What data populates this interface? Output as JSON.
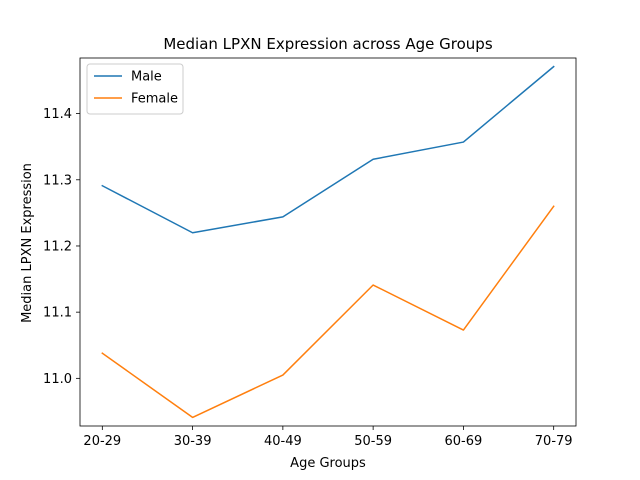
{
  "chart_data": {
    "type": "line",
    "title": "Median LPXN Expression across Age Groups",
    "xlabel": "Age Groups",
    "ylabel": "Median LPXN Expression",
    "categories": [
      "20-29",
      "30-39",
      "40-49",
      "50-59",
      "60-69",
      "70-79"
    ],
    "series": [
      {
        "name": "Male",
        "color": "#1f77b4",
        "values": [
          11.291,
          11.22,
          11.244,
          11.331,
          11.357,
          11.471
        ]
      },
      {
        "name": "Female",
        "color": "#ff7f0e",
        "values": [
          11.038,
          10.941,
          11.005,
          11.141,
          11.073,
          11.26
        ]
      }
    ],
    "ylim": [
      10.928,
      11.484
    ],
    "yticks": [
      "11.0",
      "11.1",
      "11.2",
      "11.3",
      "11.4"
    ],
    "ytick_values": [
      11.0,
      11.1,
      11.2,
      11.3,
      11.4
    ],
    "grid": false,
    "legend_position": "top-left"
  }
}
